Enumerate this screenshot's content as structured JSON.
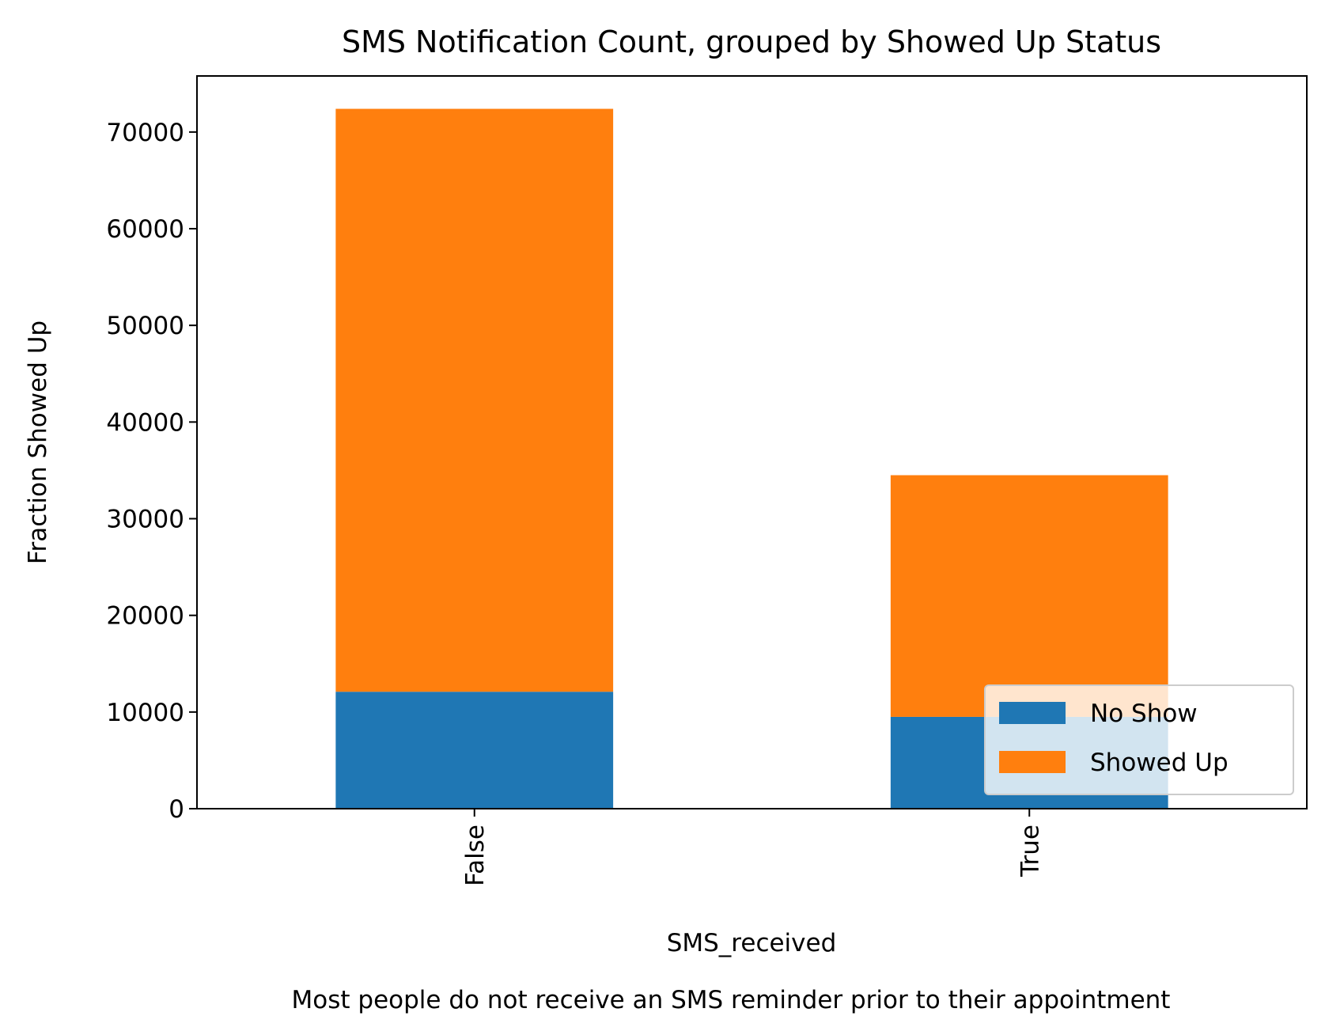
{
  "chart_data": {
    "type": "bar",
    "stacked": true,
    "title": "SMS Notification Count, grouped by Showed Up Status",
    "xlabel": "SMS_received",
    "ylabel": "Fraction Showed Up",
    "caption": "Most people do not receive an SMS reminder prior to their appointment",
    "categories": [
      "False",
      "True"
    ],
    "series": [
      {
        "name": "No Show",
        "color": "#1f77b4",
        "values": [
          12100,
          9500
        ]
      },
      {
        "name": "Showed Up",
        "color": "#ff7f0e",
        "values": [
          60300,
          25000
        ]
      }
    ],
    "ylim": [
      0,
      75800
    ],
    "yticks": [
      0,
      10000,
      20000,
      30000,
      40000,
      50000,
      60000,
      70000
    ],
    "grid": false,
    "legend_position": "lower-right"
  }
}
